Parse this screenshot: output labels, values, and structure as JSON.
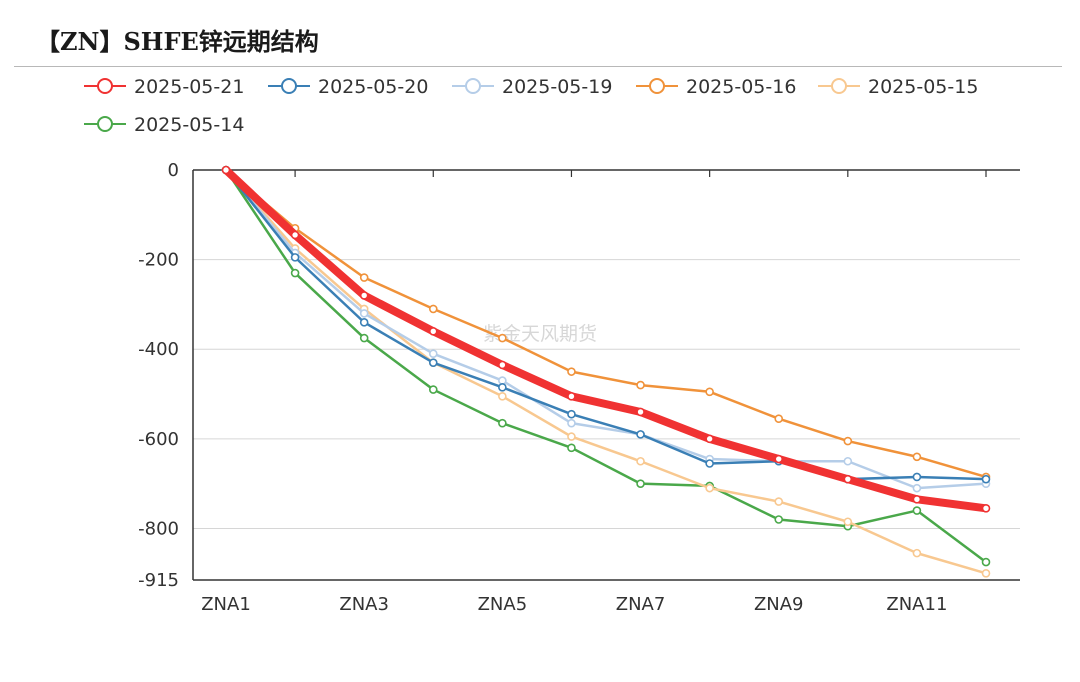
{
  "header": {
    "title": "【ZN】SHFE锌远期结构"
  },
  "watermark": "紫金天风期货",
  "chart_data": {
    "type": "line",
    "title": "【ZN】SHFE锌远期结构",
    "categories": [
      "ZNA1",
      "ZNA2",
      "ZNA3",
      "ZNA4",
      "ZNA5",
      "ZNA6",
      "ZNA7",
      "ZNA8",
      "ZNA9",
      "ZNA10",
      "ZNA11",
      "ZNA12"
    ],
    "x_tick_labels": [
      "ZNA1",
      "ZNA3",
      "ZNA5",
      "ZNA7",
      "ZNA9",
      "ZNA11"
    ],
    "y_tick_labels": [
      "0",
      "-200",
      "-400",
      "-600",
      "-800",
      "-915"
    ],
    "ylim": [
      -915,
      0
    ],
    "y_ticks": [
      0,
      -200,
      -400,
      -600,
      -800,
      -915
    ],
    "grid": true,
    "legend_position": "top-left",
    "series": [
      {
        "name": "2025-05-21",
        "color": "#f03232",
        "width": 8,
        "values": [
          0,
          -145,
          -280,
          -360,
          -435,
          -505,
          -540,
          -600,
          -645,
          -690,
          -735,
          -755
        ]
      },
      {
        "name": "2025-05-20",
        "color": "#3a7fb5",
        "width": 2.5,
        "values": [
          0,
          -195,
          -340,
          -430,
          -485,
          -545,
          -590,
          -655,
          -650,
          -690,
          -685,
          -690
        ]
      },
      {
        "name": "2025-05-19",
        "color": "#b5cde8",
        "width": 2.5,
        "values": [
          0,
          -185,
          -320,
          -410,
          -470,
          -565,
          -590,
          -645,
          -650,
          -650,
          -710,
          -700
        ]
      },
      {
        "name": "2025-05-16",
        "color": "#f0923a",
        "width": 2.5,
        "values": [
          0,
          -130,
          -240,
          -310,
          -375,
          -450,
          -480,
          -495,
          -555,
          -605,
          -640,
          -685
        ]
      },
      {
        "name": "2025-05-15",
        "color": "#f8c890",
        "width": 2.5,
        "values": [
          0,
          -175,
          -310,
          -430,
          -505,
          -595,
          -650,
          -710,
          -740,
          -785,
          -855,
          -900
        ]
      },
      {
        "name": "2025-05-14",
        "color": "#4aa84a",
        "width": 2.5,
        "values": [
          0,
          -230,
          -375,
          -490,
          -565,
          -620,
          -700,
          -705,
          -780,
          -795,
          -760,
          -875
        ]
      }
    ]
  }
}
